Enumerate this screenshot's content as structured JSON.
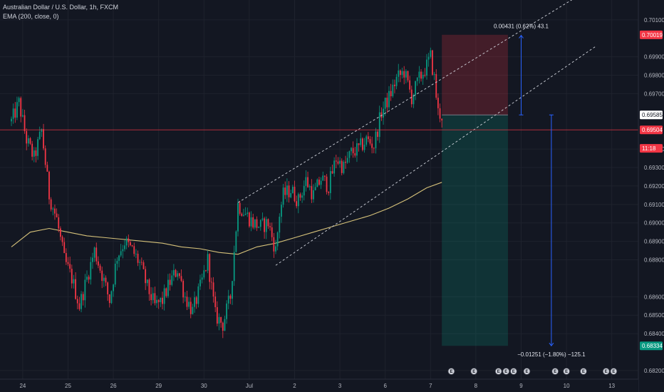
{
  "chart_data": {
    "type": "candlestick",
    "title": "Australian Dollar / U.S. Dollar, 1h, FXCM",
    "indicator": "EMA (200, close, 0)",
    "y_range": [
      0.68165,
      0.70165
    ],
    "y_ticks": [
      "0.70100",
      "0.69900",
      "0.69800",
      "0.69700",
      "0.69400",
      "0.69300",
      "0.69200",
      "0.69100",
      "0.69000",
      "0.68900",
      "0.68800",
      "0.68600",
      "0.68500",
      "0.68400",
      "0.68200"
    ],
    "x_labels": [
      {
        "label": "24",
        "bar": 6
      },
      {
        "label": "25",
        "bar": 30
      },
      {
        "label": "26",
        "bar": 54
      },
      {
        "label": "29",
        "bar": 78
      },
      {
        "label": "30",
        "bar": 102
      },
      {
        "label": "Jul",
        "bar": 126
      },
      {
        "label": "2",
        "bar": 150
      },
      {
        "label": "3",
        "bar": 174
      },
      {
        "label": "6",
        "bar": 198
      },
      {
        "label": "7",
        "bar": 222
      },
      {
        "label": "8",
        "bar": 246
      },
      {
        "label": "9",
        "bar": 270
      },
      {
        "label": "10",
        "bar": 294
      },
      {
        "label": "13",
        "bar": 318
      }
    ],
    "price_path": [
      [
        0,
        0.6955
      ],
      [
        4,
        0.6965
      ],
      [
        8,
        0.6945
      ],
      [
        12,
        0.6935
      ],
      [
        16,
        0.695
      ],
      [
        20,
        0.6915
      ],
      [
        24,
        0.6902
      ],
      [
        28,
        0.688
      ],
      [
        32,
        0.687
      ],
      [
        36,
        0.6855
      ],
      [
        40,
        0.687
      ],
      [
        44,
        0.6885
      ],
      [
        48,
        0.6872
      ],
      [
        52,
        0.6858
      ],
      [
        56,
        0.6882
      ],
      [
        60,
        0.689
      ],
      [
        64,
        0.6885
      ],
      [
        68,
        0.6878
      ],
      [
        72,
        0.6865
      ],
      [
        76,
        0.6855
      ],
      [
        80,
        0.6858
      ],
      [
        84,
        0.6868
      ],
      [
        88,
        0.6875
      ],
      [
        92,
        0.686
      ],
      [
        96,
        0.6852
      ],
      [
        100,
        0.6865
      ],
      [
        104,
        0.688
      ],
      [
        108,
        0.685
      ],
      [
        112,
        0.6845
      ],
      [
        116,
        0.686
      ],
      [
        120,
        0.691
      ],
      [
        124,
        0.6905
      ],
      [
        128,
        0.69
      ],
      [
        132,
        0.6898
      ],
      [
        136,
        0.69
      ],
      [
        140,
        0.6885
      ],
      [
        142,
        0.6905
      ],
      [
        144,
        0.6915
      ],
      [
        148,
        0.6918
      ],
      [
        152,
        0.6912
      ],
      [
        156,
        0.6923
      ],
      [
        160,
        0.6915
      ],
      [
        164,
        0.6924
      ],
      [
        168,
        0.692
      ],
      [
        172,
        0.6935
      ],
      [
        176,
        0.693
      ],
      [
        180,
        0.6938
      ],
      [
        184,
        0.694
      ],
      [
        188,
        0.6945
      ],
      [
        192,
        0.6942
      ],
      [
        196,
        0.696
      ],
      [
        200,
        0.6968
      ],
      [
        204,
        0.6978
      ],
      [
        208,
        0.6982
      ],
      [
        212,
        0.6968
      ],
      [
        216,
        0.6978
      ],
      [
        220,
        0.6985
      ],
      [
        222,
        0.699
      ],
      [
        224,
        0.6978
      ],
      [
        226,
        0.696
      ],
      [
        228,
        0.6958
      ]
    ],
    "ema": [
      [
        0,
        0.6887
      ],
      [
        10,
        0.6895
      ],
      [
        20,
        0.6897
      ],
      [
        30,
        0.6895
      ],
      [
        40,
        0.6893
      ],
      [
        50,
        0.6892
      ],
      [
        60,
        0.6891
      ],
      [
        70,
        0.689
      ],
      [
        80,
        0.6889
      ],
      [
        90,
        0.6887
      ],
      [
        100,
        0.6886
      ],
      [
        110,
        0.6884
      ],
      [
        120,
        0.6883
      ],
      [
        130,
        0.6887
      ],
      [
        140,
        0.6889
      ],
      [
        150,
        0.6892
      ],
      [
        160,
        0.6895
      ],
      [
        170,
        0.6898
      ],
      [
        180,
        0.6901
      ],
      [
        190,
        0.6904
      ],
      [
        200,
        0.6908
      ],
      [
        210,
        0.6913
      ],
      [
        220,
        0.6919
      ],
      [
        228,
        0.6922
      ]
    ],
    "channel": {
      "upper": [
        [
          120,
          0.6911
        ],
        [
          310,
          0.7029
        ]
      ],
      "lower": [
        [
          140,
          0.6877
        ],
        [
          310,
          0.6996
        ]
      ]
    },
    "horizontal_line": 0.69504,
    "position": {
      "type": "short",
      "start_bar": 228,
      "end_bar": 263,
      "entry": 0.69585,
      "stop": 0.70019,
      "target": 0.68334
    },
    "measure_up": {
      "bar": 270,
      "from": 0.69585,
      "to": 0.70016,
      "label": "0.00431 (0.62%) 43.1"
    },
    "measure_down": {
      "bar": 286,
      "from": 0.69585,
      "to": 0.68334,
      "label": "−0.01251 (−1.80%) −125.1"
    },
    "price_tags": [
      {
        "value": 0.70019,
        "label": "0.70019",
        "color": "#f23645"
      },
      {
        "value": 0.69585,
        "label": "0.69585",
        "color": "#ffffff"
      },
      {
        "value": 0.69504,
        "label": "0.69504",
        "color": "#f23645"
      },
      {
        "value": 0.69404,
        "label": "11:18",
        "color": "#f23645"
      },
      {
        "value": 0.68334,
        "label": "0.68334",
        "color": "#089981"
      }
    ],
    "events": [
      {
        "bar": 233,
        "label": "E"
      },
      {
        "bar": 245,
        "label": "E"
      },
      {
        "bar": 258,
        "label": "E"
      },
      {
        "bar": 262,
        "label": "E"
      },
      {
        "bar": 266,
        "label": "E"
      },
      {
        "bar": 273,
        "label": "E"
      },
      {
        "bar": 288,
        "label": "E"
      },
      {
        "bar": 294,
        "label": "E"
      },
      {
        "bar": 303,
        "label": "E"
      },
      {
        "bar": 315,
        "label": "E"
      },
      {
        "bar": 319,
        "label": "E"
      }
    ]
  }
}
